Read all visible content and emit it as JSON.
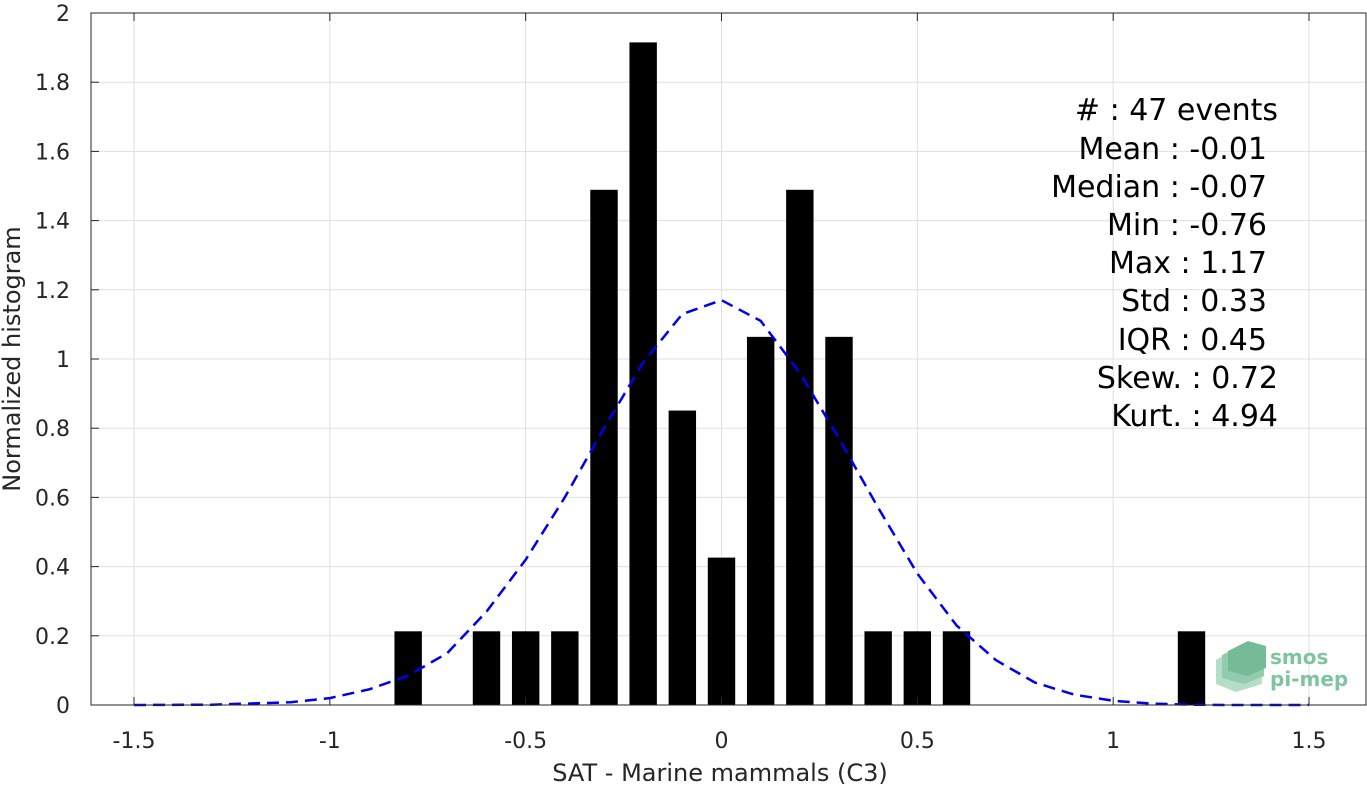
{
  "chart_data": {
    "type": "bar",
    "xlabel": "SAT - Marine mammals (C3)",
    "ylabel": "Normalized histogram",
    "xlim": [
      -1.5,
      1.5
    ],
    "ylim": [
      0,
      2
    ],
    "grid": true,
    "xticks": [
      -1.5,
      -1,
      -0.5,
      0,
      0.5,
      1,
      1.5
    ],
    "xtick_labels": [
      "-1.5",
      "-1",
      "-0.5",
      "0",
      "0.5",
      "1",
      "1.5"
    ],
    "yticks": [
      0,
      0.2,
      0.4,
      0.6,
      0.8,
      1,
      1.2,
      1.4,
      1.6,
      1.8,
      2
    ],
    "ytick_labels": [
      "0",
      "0.2",
      "0.4",
      "0.6",
      "0.8",
      "1",
      "1.2",
      "1.4",
      "1.6",
      "1.8",
      "2"
    ],
    "bar_width": 0.07,
    "bars": [
      {
        "x": -0.8,
        "y": 0.213
      },
      {
        "x": -0.6,
        "y": 0.213
      },
      {
        "x": -0.5,
        "y": 0.213
      },
      {
        "x": -0.4,
        "y": 0.213
      },
      {
        "x": -0.3,
        "y": 1.489
      },
      {
        "x": -0.2,
        "y": 1.915
      },
      {
        "x": -0.1,
        "y": 0.851
      },
      {
        "x": 0.0,
        "y": 0.426
      },
      {
        "x": 0.1,
        "y": 1.064
      },
      {
        "x": 0.2,
        "y": 1.489
      },
      {
        "x": 0.3,
        "y": 1.064
      },
      {
        "x": 0.4,
        "y": 0.213
      },
      {
        "x": 0.5,
        "y": 0.213
      },
      {
        "x": 0.6,
        "y": 0.213
      },
      {
        "x": 1.2,
        "y": 0.213
      }
    ],
    "fit_curve": {
      "style": "dashed",
      "color": "#0000ee",
      "points": [
        [
          -1.5,
          0.0
        ],
        [
          -1.3,
          0.001
        ],
        [
          -1.1,
          0.008
        ],
        [
          -1.0,
          0.02
        ],
        [
          -0.9,
          0.045
        ],
        [
          -0.8,
          0.085
        ],
        [
          -0.7,
          0.15
        ],
        [
          -0.6,
          0.27
        ],
        [
          -0.5,
          0.42
        ],
        [
          -0.4,
          0.6
        ],
        [
          -0.3,
          0.8
        ],
        [
          -0.2,
          0.99
        ],
        [
          -0.1,
          1.13
        ],
        [
          0.0,
          1.17
        ],
        [
          0.1,
          1.11
        ],
        [
          0.2,
          0.96
        ],
        [
          0.3,
          0.77
        ],
        [
          0.4,
          0.57
        ],
        [
          0.5,
          0.38
        ],
        [
          0.6,
          0.23
        ],
        [
          0.7,
          0.13
        ],
        [
          0.8,
          0.065
        ],
        [
          0.9,
          0.03
        ],
        [
          1.0,
          0.012
        ],
        [
          1.1,
          0.004
        ],
        [
          1.2,
          0.001
        ],
        [
          1.3,
          0.0
        ],
        [
          1.5,
          0.0
        ]
      ]
    }
  },
  "stats": [
    "#  : 47 events",
    "Mean : -0.01",
    "Median : -0.07",
    "Min : -0.76",
    "Max : 1.17",
    "Std : 0.33",
    "IQR : 0.45",
    "Skew. : 0.72",
    "Kurt. : 4.94"
  ],
  "logo": {
    "line1": "smos",
    "line2": "pi-mep",
    "color": "#7fc4a0"
  }
}
